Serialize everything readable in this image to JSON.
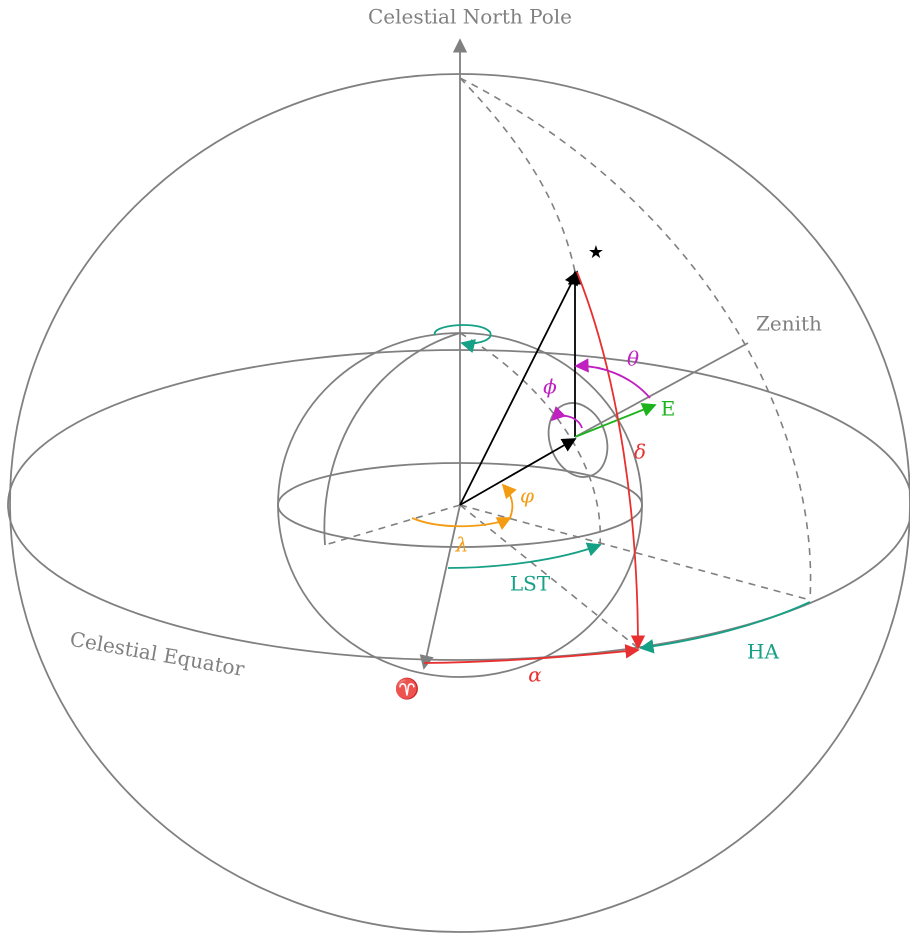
{
  "diagram": {
    "north_pole": "Celestial North Pole",
    "zenith": "Zenith",
    "star": "★",
    "theta": "θ",
    "east": "E",
    "phi_upper": "ϕ",
    "delta": "δ",
    "phi_lat": "φ",
    "lambda": "λ",
    "lst": "LST",
    "ha": "HA",
    "alpha": "α",
    "equator": "Celestial Equator",
    "aries": "♈"
  }
}
